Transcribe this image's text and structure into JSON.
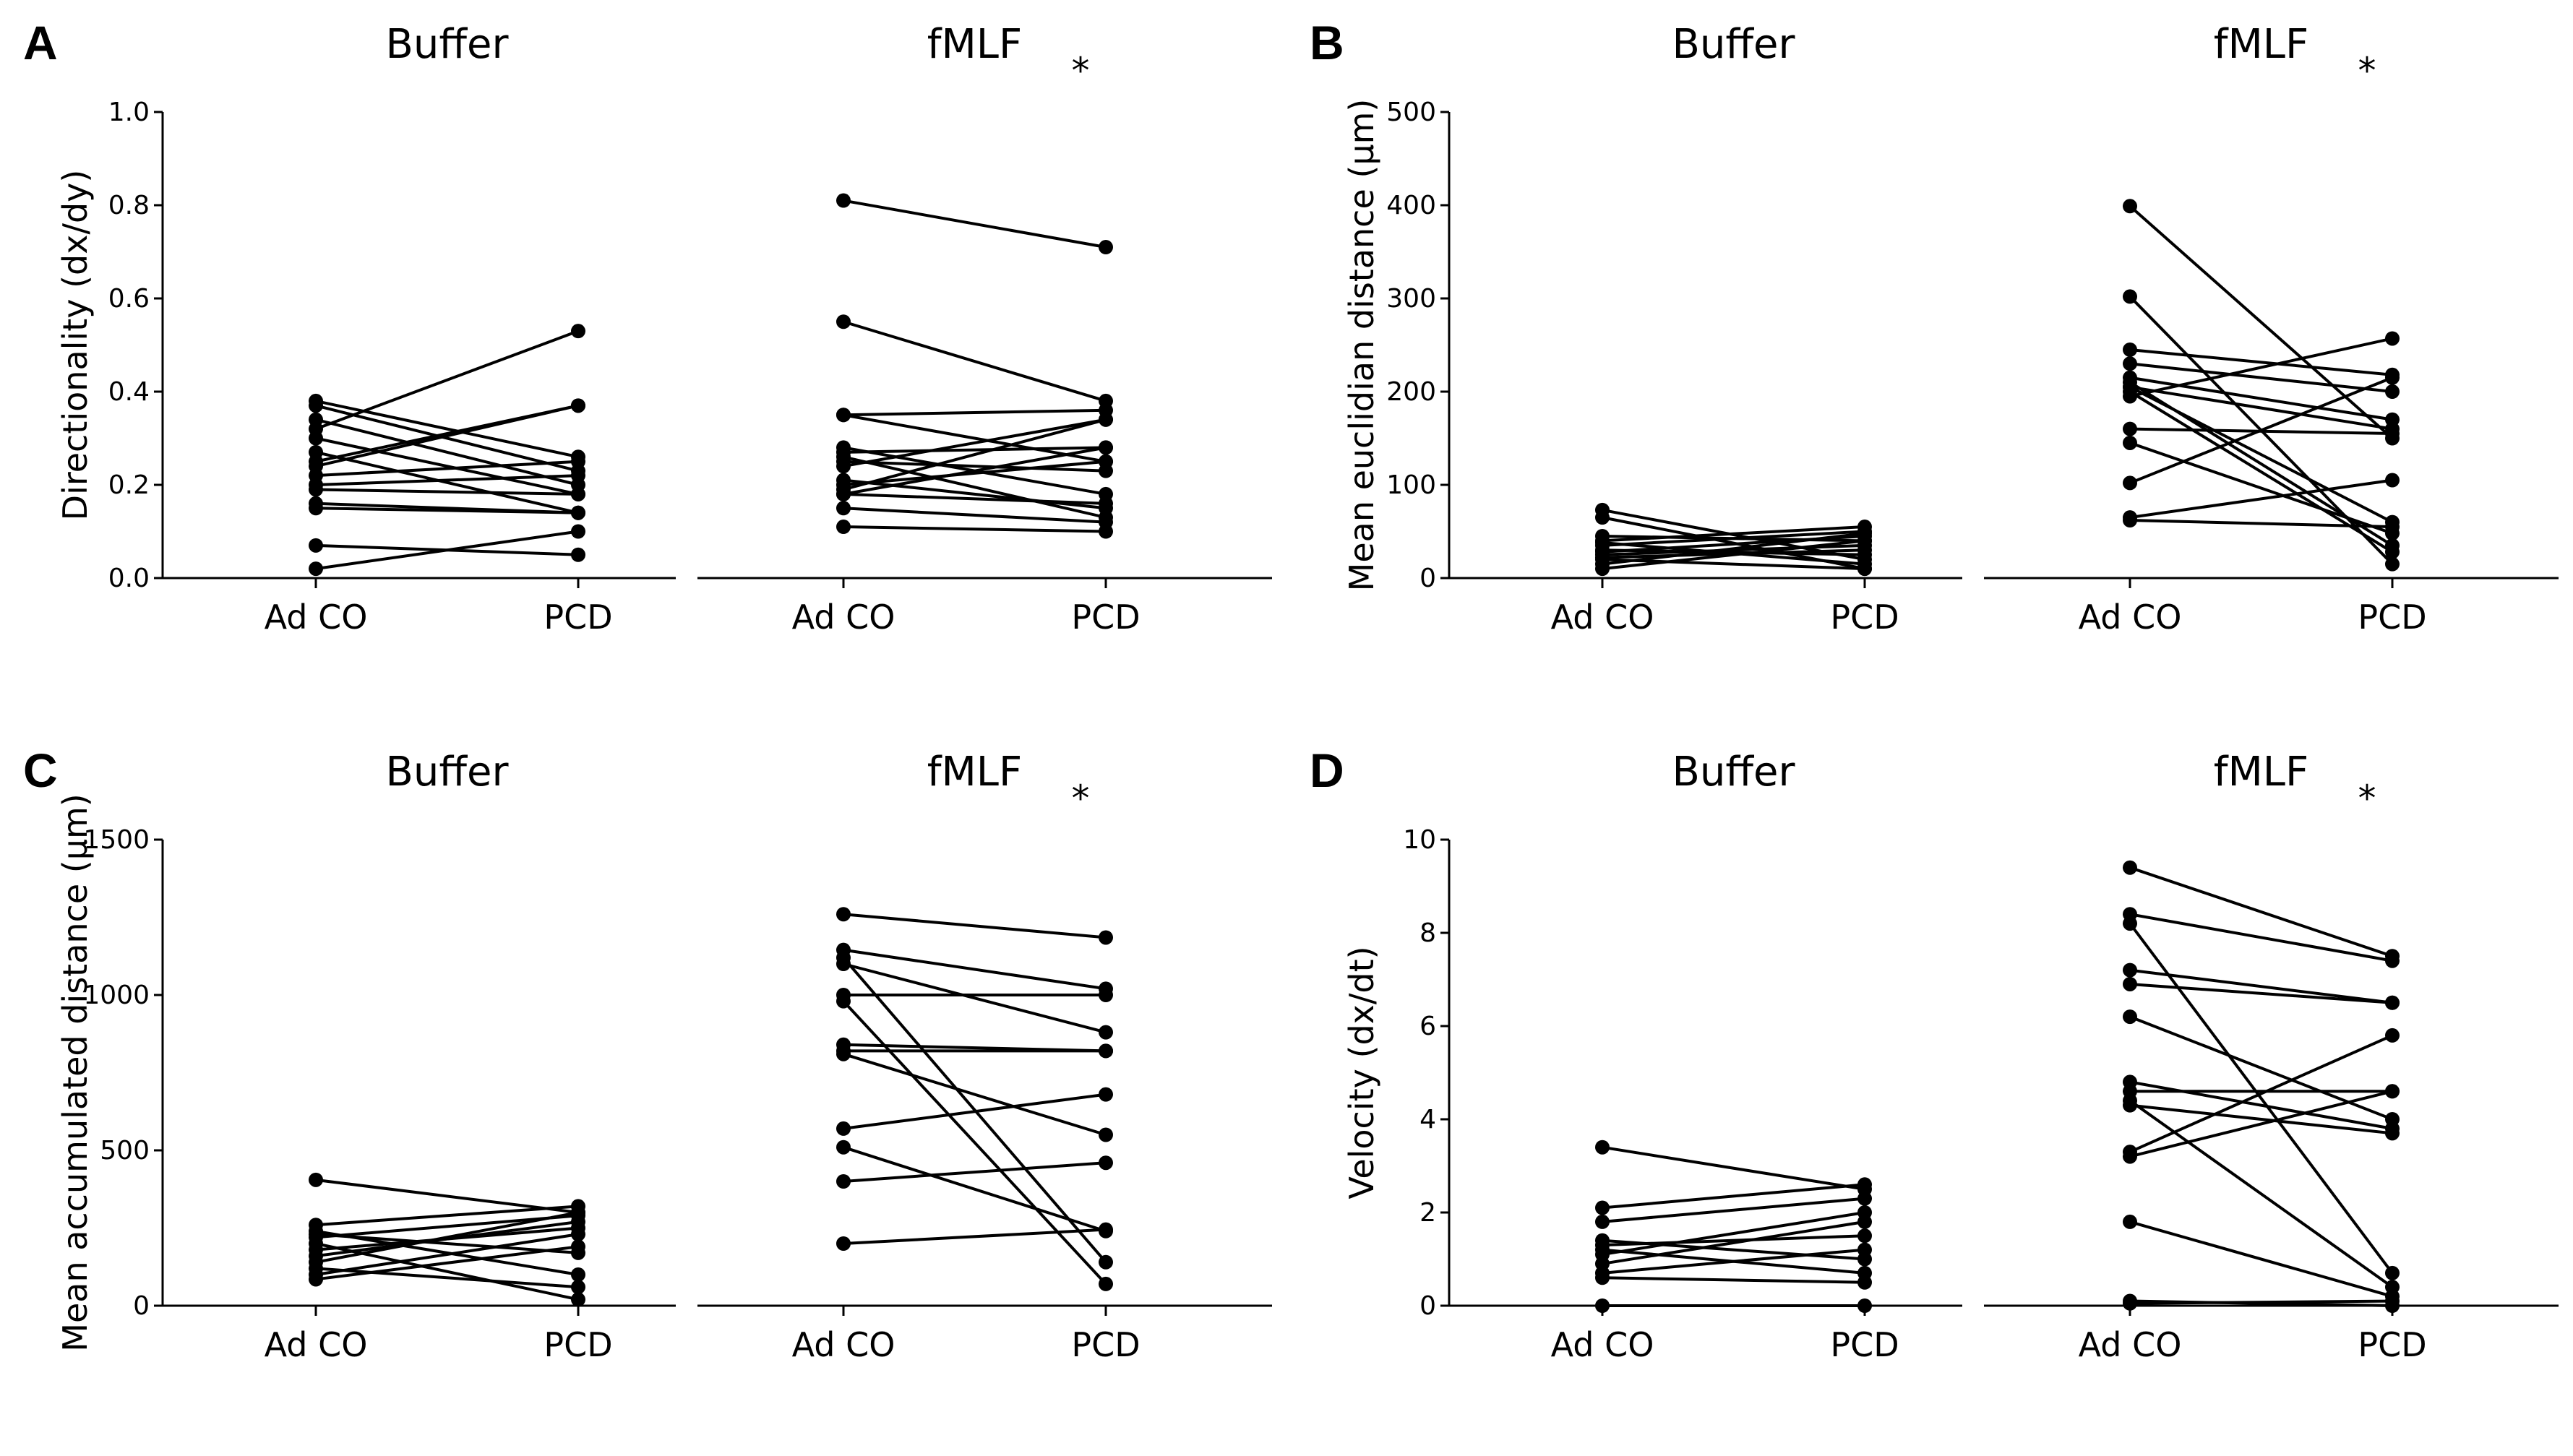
{
  "panels": [
    {
      "letter": "A",
      "ylabel": "Directionality (dx/dy)",
      "ylim": [
        0,
        1.0
      ],
      "yticks": [
        0.0,
        0.2,
        0.4,
        0.6,
        0.8,
        1.0
      ],
      "ytick_labels": [
        "0.0",
        "0.2",
        "0.4",
        "0.6",
        "0.8",
        "1.0"
      ],
      "groups": [
        {
          "title": "Buffer",
          "star": "",
          "categories": [
            "Ad CO",
            "PCD"
          ],
          "pairs": [
            [
              0.38,
              0.26
            ],
            [
              0.37,
              0.23
            ],
            [
              0.34,
              0.2
            ],
            [
              0.32,
              0.53
            ],
            [
              0.3,
              0.18
            ],
            [
              0.27,
              0.14
            ],
            [
              0.25,
              0.37
            ],
            [
              0.24,
              0.37
            ],
            [
              0.22,
              0.25
            ],
            [
              0.2,
              0.22
            ],
            [
              0.19,
              0.18
            ],
            [
              0.16,
              0.14
            ],
            [
              0.15,
              0.14
            ],
            [
              0.07,
              0.05
            ],
            [
              0.02,
              0.1
            ]
          ]
        },
        {
          "title": "fMLF",
          "star": "*",
          "categories": [
            "Ad CO",
            "PCD"
          ],
          "pairs": [
            [
              0.81,
              0.71
            ],
            [
              0.55,
              0.38
            ],
            [
              0.35,
              0.36
            ],
            [
              0.35,
              0.25
            ],
            [
              0.28,
              0.18
            ],
            [
              0.27,
              0.28
            ],
            [
              0.26,
              0.13
            ],
            [
              0.25,
              0.23
            ],
            [
              0.24,
              0.34
            ],
            [
              0.21,
              0.15
            ],
            [
              0.2,
              0.25
            ],
            [
              0.19,
              0.34
            ],
            [
              0.18,
              0.16
            ],
            [
              0.18,
              0.28
            ],
            [
              0.15,
              0.12
            ],
            [
              0.11,
              0.1
            ]
          ]
        }
      ]
    },
    {
      "letter": "B",
      "ylabel": "Mean euclidian distance (µm)",
      "ylim": [
        0,
        500
      ],
      "yticks": [
        0,
        100,
        200,
        300,
        400,
        500
      ],
      "ytick_labels": [
        "0",
        "100",
        "200",
        "300",
        "400",
        "500"
      ],
      "groups": [
        {
          "title": "Buffer",
          "star": "",
          "categories": [
            "Ad CO",
            "PCD"
          ],
          "pairs": [
            [
              73,
              20
            ],
            [
              65,
              10
            ],
            [
              45,
              40
            ],
            [
              40,
              55
            ],
            [
              38,
              15
            ],
            [
              35,
              50
            ],
            [
              30,
              25
            ],
            [
              28,
              45
            ],
            [
              25,
              35
            ],
            [
              22,
              30
            ],
            [
              20,
              10
            ],
            [
              15,
              48
            ],
            [
              10,
              40
            ]
          ]
        },
        {
          "title": "fMLF",
          "star": "*",
          "categories": [
            "Ad CO",
            "PCD"
          ],
          "pairs": [
            [
              399,
              150
            ],
            [
              302,
              15
            ],
            [
              245,
              218
            ],
            [
              230,
              200
            ],
            [
              215,
              170
            ],
            [
              210,
              35
            ],
            [
              205,
              60
            ],
            [
              205,
              160
            ],
            [
              200,
              28
            ],
            [
              195,
              257
            ],
            [
              160,
              155
            ],
            [
              145,
              48
            ],
            [
              102,
              215
            ],
            [
              65,
              105
            ],
            [
              62,
              55
            ]
          ]
        }
      ]
    },
    {
      "letter": "C",
      "ylabel": "Mean accumulated distance (µm)",
      "ylim": [
        0,
        1500
      ],
      "yticks": [
        0,
        500,
        1000,
        1500
      ],
      "ytick_labels": [
        "0",
        "500",
        "1000",
        "1500"
      ],
      "groups": [
        {
          "title": "Buffer",
          "star": "",
          "categories": [
            "Ad CO",
            "PCD"
          ],
          "pairs": [
            [
              405,
              300
            ],
            [
              260,
              320
            ],
            [
              240,
              100
            ],
            [
              230,
              170
            ],
            [
              220,
              290
            ],
            [
              200,
              20
            ],
            [
              180,
              250
            ],
            [
              160,
              270
            ],
            [
              140,
              300
            ],
            [
              120,
              60
            ],
            [
              100,
              230
            ],
            [
              85,
              190
            ]
          ]
        },
        {
          "title": "fMLF",
          "star": "*",
          "categories": [
            "Ad CO",
            "PCD"
          ],
          "pairs": [
            [
              1260,
              1185
            ],
            [
              1145,
              1020
            ],
            [
              1120,
              140
            ],
            [
              1100,
              880
            ],
            [
              1000,
              1000
            ],
            [
              980,
              70
            ],
            [
              840,
              820
            ],
            [
              820,
              820
            ],
            [
              810,
              550
            ],
            [
              570,
              680
            ],
            [
              510,
              240
            ],
            [
              400,
              460
            ],
            [
              200,
              245
            ]
          ]
        }
      ]
    },
    {
      "letter": "D",
      "ylabel": "Velocity (dx/dt)",
      "ylim": [
        0,
        10
      ],
      "yticks": [
        0,
        2,
        4,
        6,
        8,
        10
      ],
      "ytick_labels": [
        "0",
        "2",
        "4",
        "6",
        "8",
        "10"
      ],
      "groups": [
        {
          "title": "Buffer",
          "star": "",
          "categories": [
            "Ad CO",
            "PCD"
          ],
          "pairs": [
            [
              3.4,
              2.5
            ],
            [
              2.1,
              2.6
            ],
            [
              1.8,
              2.3
            ],
            [
              1.4,
              1.0
            ],
            [
              1.3,
              1.5
            ],
            [
              1.2,
              0.7
            ],
            [
              1.1,
              2.0
            ],
            [
              0.9,
              1.8
            ],
            [
              0.7,
              1.2
            ],
            [
              0.6,
              0.5
            ],
            [
              0.0,
              0.0
            ]
          ]
        },
        {
          "title": "fMLF",
          "star": "*",
          "categories": [
            "Ad CO",
            "PCD"
          ],
          "pairs": [
            [
              9.4,
              7.5
            ],
            [
              8.4,
              7.4
            ],
            [
              8.2,
              0.7
            ],
            [
              7.2,
              6.5
            ],
            [
              6.9,
              6.5
            ],
            [
              6.2,
              4.0
            ],
            [
              4.8,
              3.8
            ],
            [
              4.6,
              4.6
            ],
            [
              4.4,
              0.4
            ],
            [
              4.3,
              3.7
            ],
            [
              3.3,
              5.8
            ],
            [
              3.2,
              4.6
            ],
            [
              1.8,
              0.2
            ],
            [
              0.1,
              0.0
            ],
            [
              0.05,
              0.1
            ]
          ]
        }
      ]
    }
  ]
}
